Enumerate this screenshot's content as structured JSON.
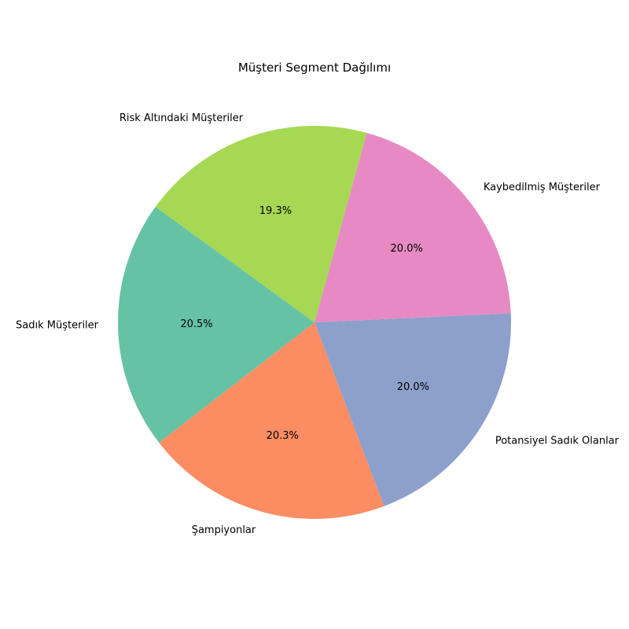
{
  "chart_data": {
    "type": "pie",
    "title": "Müşteri Segment Dağılımı",
    "start_angle_deg": 144,
    "direction": "counterclockwise",
    "slices": [
      {
        "label": "Sadık Müşteriler",
        "value": 20.5,
        "pct_label": "20.5%",
        "color": "#66c2a5"
      },
      {
        "label": "Şampiyonlar",
        "value": 20.3,
        "pct_label": "20.3%",
        "color": "#fc8d62"
      },
      {
        "label": "Potansiyel Sadık Olanlar",
        "value": 20.0,
        "pct_label": "20.0%",
        "color": "#8da0cb"
      },
      {
        "label": "Kaybedilmiş Müşteriler",
        "value": 20.0,
        "pct_label": "20.0%",
        "color": "#e78ac3"
      },
      {
        "label": "Risk Altındaki Müşteriler",
        "value": 19.3,
        "pct_label": "19.3%",
        "color": "#a6d854"
      }
    ]
  }
}
